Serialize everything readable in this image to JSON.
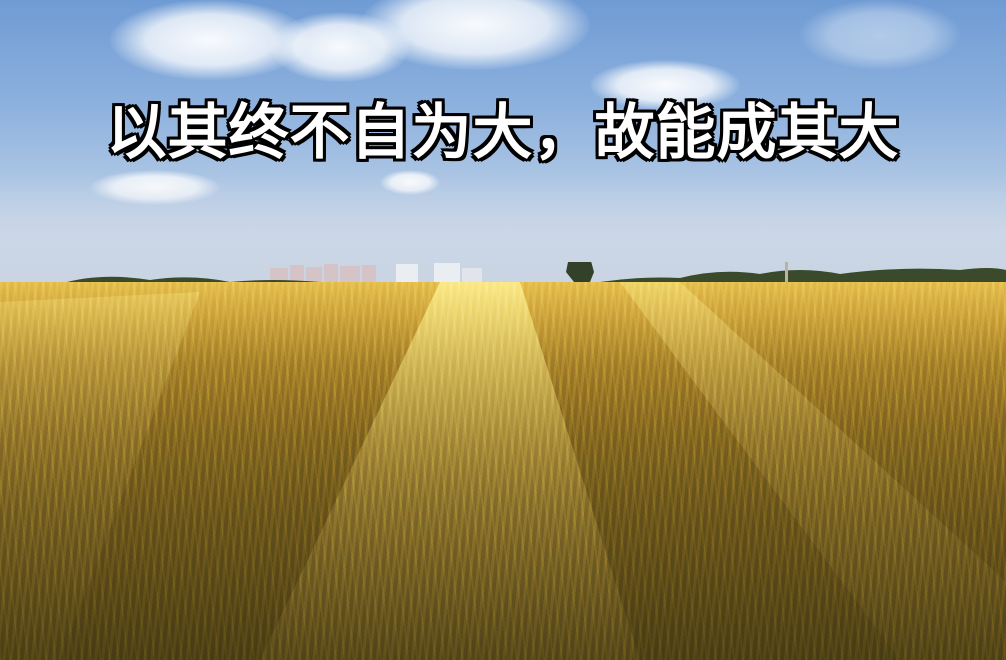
{
  "caption": {
    "text": "以其终不自为大，故能成其大"
  },
  "scene": {
    "description_tokens": [
      "sky-icon",
      "cloud-icon",
      "skyline-icon",
      "tree-icon",
      "wheat-field-icon"
    ],
    "colors": {
      "sky_top": "#6f9bd4",
      "sky_bottom": "#cfd9e6",
      "field_near": "#6e5a1e",
      "field_far": "#e6c35a",
      "caption_fill": "#ffffff",
      "caption_outline": "#000000"
    }
  }
}
